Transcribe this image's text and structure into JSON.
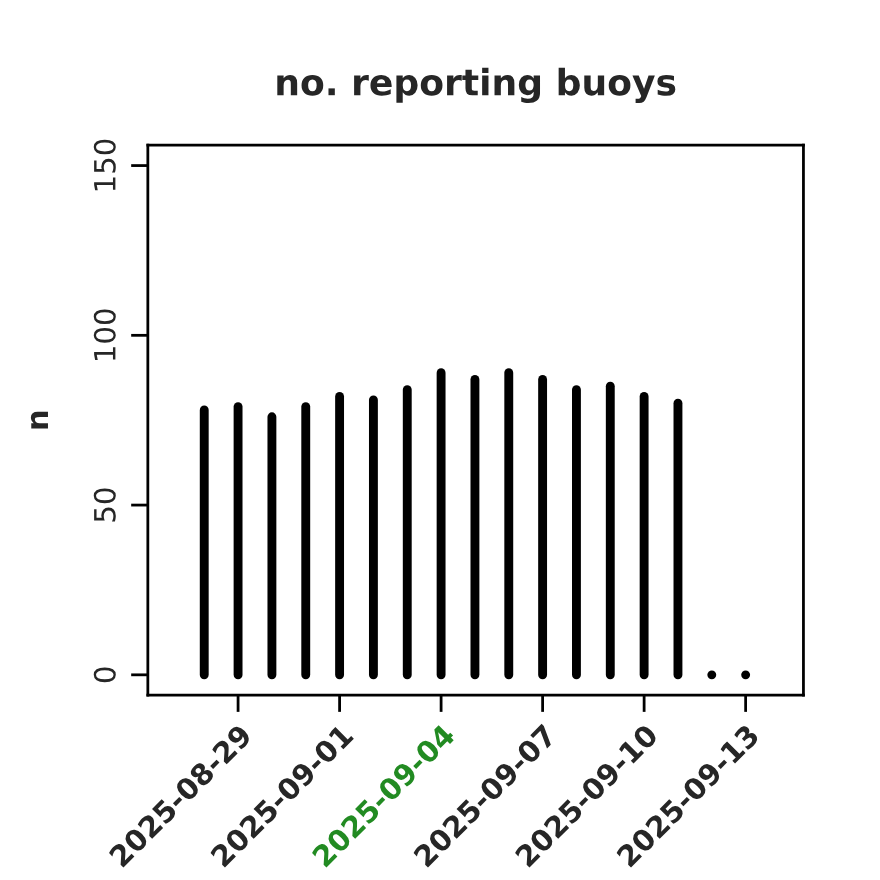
{
  "chart_data": {
    "type": "bar",
    "title": "no. reporting buoys",
    "ylabel": "n",
    "x": [
      "2025-08-28",
      "2025-08-29",
      "2025-08-30",
      "2025-08-31",
      "2025-09-01",
      "2025-09-02",
      "2025-09-03",
      "2025-09-04",
      "2025-09-05",
      "2025-09-06",
      "2025-09-07",
      "2025-09-08",
      "2025-09-09",
      "2025-09-10",
      "2025-09-11",
      "2025-09-12",
      "2025-09-13"
    ],
    "values": [
      78,
      79,
      76,
      79,
      82,
      81,
      84,
      89,
      87,
      89,
      87,
      84,
      85,
      82,
      80,
      0,
      0
    ],
    "color": "#000000",
    "xlim": [
      "2025-08-26T08:00",
      "2025-09-14T17:00"
    ],
    "xticks": [
      {
        "value": "2025-08-29",
        "label": "2025-08-29"
      },
      {
        "value": "2025-09-01",
        "label": "2025-09-01"
      },
      {
        "value": "2025-09-04",
        "label": "2025-09-04"
      },
      {
        "value": "2025-09-07",
        "label": "2025-09-07"
      },
      {
        "value": "2025-09-10",
        "label": "2025-09-10"
      },
      {
        "value": "2025-09-13",
        "label": "2025-09-13"
      }
    ],
    "ylim": [
      -6,
      156
    ],
    "yticks": [
      0,
      50,
      100,
      150
    ],
    "grid": false,
    "legend": false
  }
}
